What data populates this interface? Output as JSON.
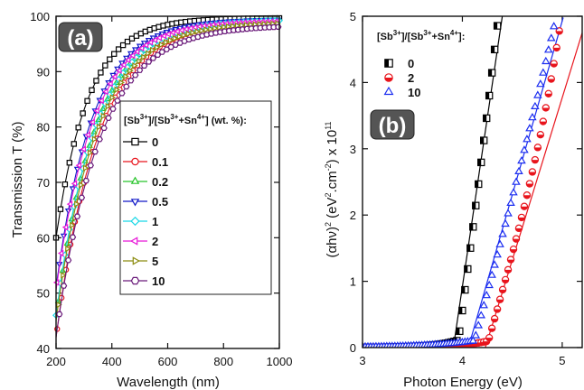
{
  "chart_data": [
    {
      "type": "line",
      "panel_label": "(a)",
      "xlabel": "Wavelength (nm)",
      "ylabel": "Transmission T (%)",
      "xlim": [
        200,
        1000
      ],
      "ylim": [
        40,
        100
      ],
      "xticks": [
        "200",
        "400",
        "600",
        "800",
        "1000"
      ],
      "yticks": [
        "40",
        "50",
        "60",
        "70",
        "80",
        "90",
        "100"
      ],
      "legend_title": {
        "a": "[Sb",
        "b": "3+",
        "c": "]/[Sb",
        "d": "3+",
        "e": "+Sn",
        "f": "4+",
        "g": "] (wt. %):"
      },
      "legend_placement": "center-right",
      "series": [
        {
          "name": "0",
          "color": "#000000",
          "marker": "square",
          "start": 60.0,
          "k": 115,
          "plateau": 99.7
        },
        {
          "name": "0.1",
          "color": "#e8141c",
          "marker": "circle",
          "start": 42.0,
          "k": 150,
          "plateau": 99.3
        },
        {
          "name": "0.2",
          "color": "#27c42a",
          "marker": "triangle-up",
          "start": 45.5,
          "k": 140,
          "plateau": 99.5
        },
        {
          "name": "0.5",
          "color": "#1018c8",
          "marker": "triangle-down",
          "start": 51.0,
          "k": 130,
          "plateau": 99.5
        },
        {
          "name": "1",
          "color": "#18d8e6",
          "marker": "diamond",
          "start": 46.0,
          "k": 140,
          "plateau": 99.4
        },
        {
          "name": "2",
          "color": "#e818d8",
          "marker": "triangle-left",
          "start": 50.5,
          "k": 135,
          "plateau": 99.2
        },
        {
          "name": "5",
          "color": "#8c8c10",
          "marker": "triangle-right",
          "start": 45.0,
          "k": 145,
          "plateau": 98.9
        },
        {
          "name": "10",
          "color": "#6a1a7a",
          "marker": "hex",
          "start": 42.0,
          "k": 155,
          "plateau": 98.4
        }
      ]
    },
    {
      "type": "scatter",
      "panel_label": "(b)",
      "xlabel": "Photon Energy (eV)",
      "ylabel": {
        "a": "(αhν)",
        "b": "2",
        "c": " (eV",
        "d": "2",
        "e": ".cm",
        "f": "-2",
        "g": ") x 10",
        "h": "11"
      },
      "xlim": [
        3,
        5.2
      ],
      "ylim": [
        0,
        5
      ],
      "xticks": [
        "3",
        "4",
        "5"
      ],
      "yticks": [
        "0",
        "1",
        "2",
        "3",
        "4",
        "5"
      ],
      "legend_title": {
        "a": "[Sb",
        "b": "3+",
        "c": "]/[Sb",
        "d": "3+",
        "e": "+Sn",
        "f": "4+",
        "g": "]:"
      },
      "legend_placement": "top-left",
      "series": [
        {
          "name": "0",
          "color": "#000000",
          "marker": "half-square",
          "edge": 3.96,
          "slope": 11.0,
          "tail": 0.11,
          "decay": 4.2,
          "x_end": 4.38,
          "fit": [
            [
              3.91,
              0.0
            ],
            [
              4.4,
              5.0
            ]
          ]
        },
        {
          "name": "2",
          "color": "#e8141c",
          "marker": "half-circle",
          "edge": 4.26,
          "slope": 4.9,
          "tail": 0.1,
          "decay": 3.6,
          "x_end": 5.2,
          "fit": [
            [
              4.23,
              0.0
            ],
            [
              5.2,
              4.75
            ]
          ]
        },
        {
          "name": "10",
          "color": "#1a2cf0",
          "marker": "triangle-up",
          "edge": 4.12,
          "slope": 5.35,
          "tail": 0.1,
          "decay": 2.2,
          "x_end": 5.0,
          "fit": [
            [
              4.06,
              0.0
            ],
            [
              5.01,
              4.98
            ]
          ]
        }
      ]
    }
  ]
}
